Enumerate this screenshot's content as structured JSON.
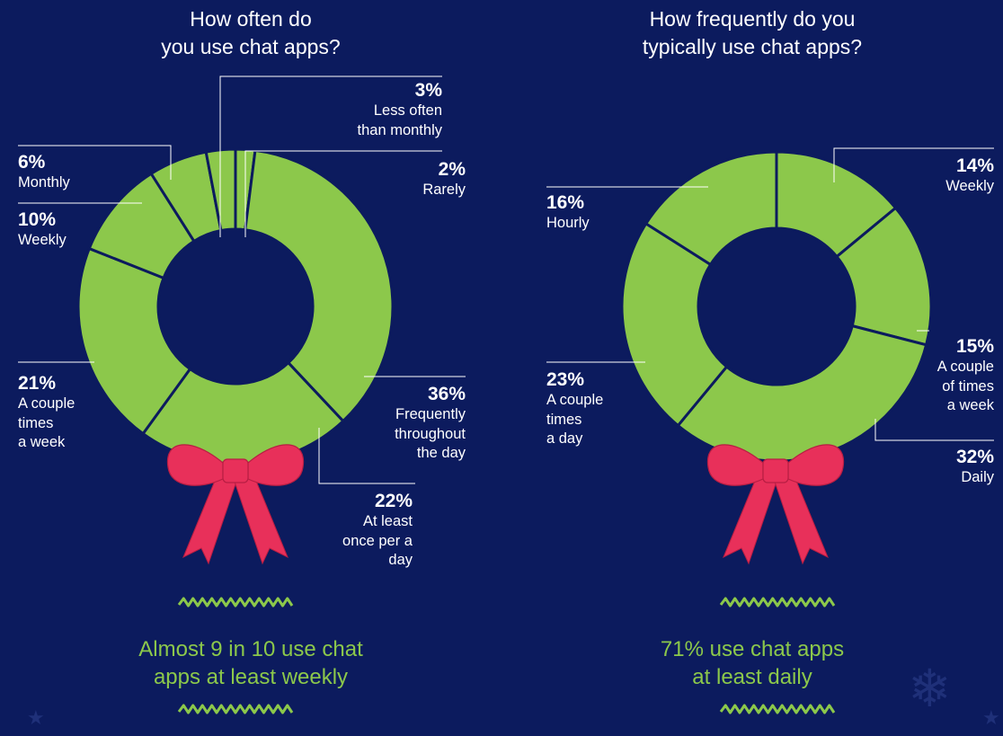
{
  "colors": {
    "background": "#0c1b5e",
    "wreath": "#8cc84b",
    "bow": "#e8305a",
    "text": "#ffffff",
    "accent": "#8cc84b"
  },
  "chart_data": [
    {
      "type": "pie",
      "title": "How often do\nyou use chat apps?",
      "categories": [
        "Frequently throughout the day",
        "At least once per a day",
        "A couple times a week",
        "Weekly",
        "Monthly",
        "Less often than monthly",
        "Rarely"
      ],
      "values": [
        36,
        22,
        21,
        10,
        6,
        3,
        2
      ],
      "labels": [
        {
          "pct": "36%",
          "cat": "Frequently\nthroughout\nthe day"
        },
        {
          "pct": "22%",
          "cat": "At least\nonce per a\nday"
        },
        {
          "pct": "21%",
          "cat": "A couple\ntimes\na week"
        },
        {
          "pct": "10%",
          "cat": "Weekly"
        },
        {
          "pct": "6%",
          "cat": "Monthly"
        },
        {
          "pct": "3%",
          "cat": "Less often\nthan monthly"
        },
        {
          "pct": "2%",
          "cat": "Rarely"
        }
      ],
      "summary": "Almost 9 in 10 use chat\napps at least weekly"
    },
    {
      "type": "pie",
      "title": "How frequently do you\ntypically use chat apps?",
      "categories": [
        "Weekly",
        "A couple of times a week",
        "Daily",
        "A couple times a day",
        "Hourly"
      ],
      "values": [
        14,
        15,
        32,
        23,
        16
      ],
      "labels": [
        {
          "pct": "14%",
          "cat": "Weekly"
        },
        {
          "pct": "15%",
          "cat": "A couple\nof times\na week"
        },
        {
          "pct": "32%",
          "cat": "Daily"
        },
        {
          "pct": "23%",
          "cat": "A couple\ntimes\na day"
        },
        {
          "pct": "16%",
          "cat": "Hourly"
        }
      ],
      "summary": "71% use chat apps\nat least daily"
    }
  ]
}
